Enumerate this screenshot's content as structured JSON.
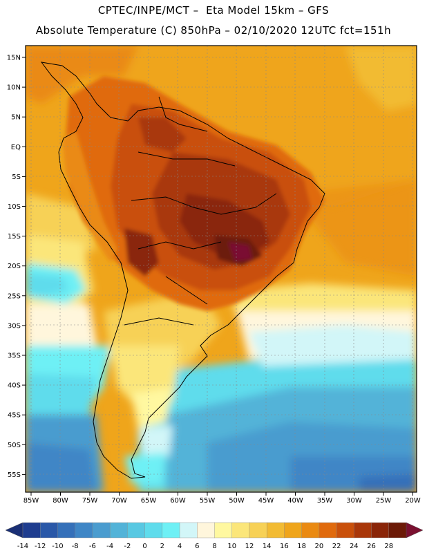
{
  "header": {
    "line1": "CPTEC/INPE/MCT –  Eta Model 15km – GFS",
    "line2": "Absolute Temperature (C) 850hPa – 02/10/2020 12UTC fct=151h"
  },
  "map": {
    "lat_labels": [
      "15N",
      "10N",
      "5N",
      "EQ",
      "5S",
      "10S",
      "15S",
      "20S",
      "25S",
      "30S",
      "35S",
      "40S",
      "45S",
      "50S",
      "55S"
    ],
    "lon_labels": [
      "85W",
      "80W",
      "75W",
      "70W",
      "65W",
      "60W",
      "55W",
      "50W",
      "45W",
      "40W",
      "35W",
      "30W",
      "25W",
      "20W"
    ]
  },
  "colorbar": {
    "labels": [
      "-14",
      "-12",
      "-10",
      "-8",
      "-6",
      "-4",
      "-2",
      "0",
      "2",
      "4",
      "6",
      "8",
      "10",
      "12",
      "14",
      "16",
      "18",
      "20",
      "22",
      "24",
      "26",
      "28"
    ],
    "colors": [
      "#1f3d8f",
      "#2a58a8",
      "#3570b9",
      "#3f86c6",
      "#4a9ccf",
      "#52b3d8",
      "#58c8e2",
      "#5fdcec",
      "#6ef0f5",
      "#d2f6f8",
      "#fff6dc",
      "#fff8a0",
      "#fbe67a",
      "#f7d156",
      "#f2bb33",
      "#efa51b",
      "#ea8a12",
      "#e06a0d",
      "#c9500b",
      "#a9370a",
      "#8a2508",
      "#6c1a07"
    ],
    "under_color": "#1a2f75",
    "over_color": "#7a1030"
  }
}
